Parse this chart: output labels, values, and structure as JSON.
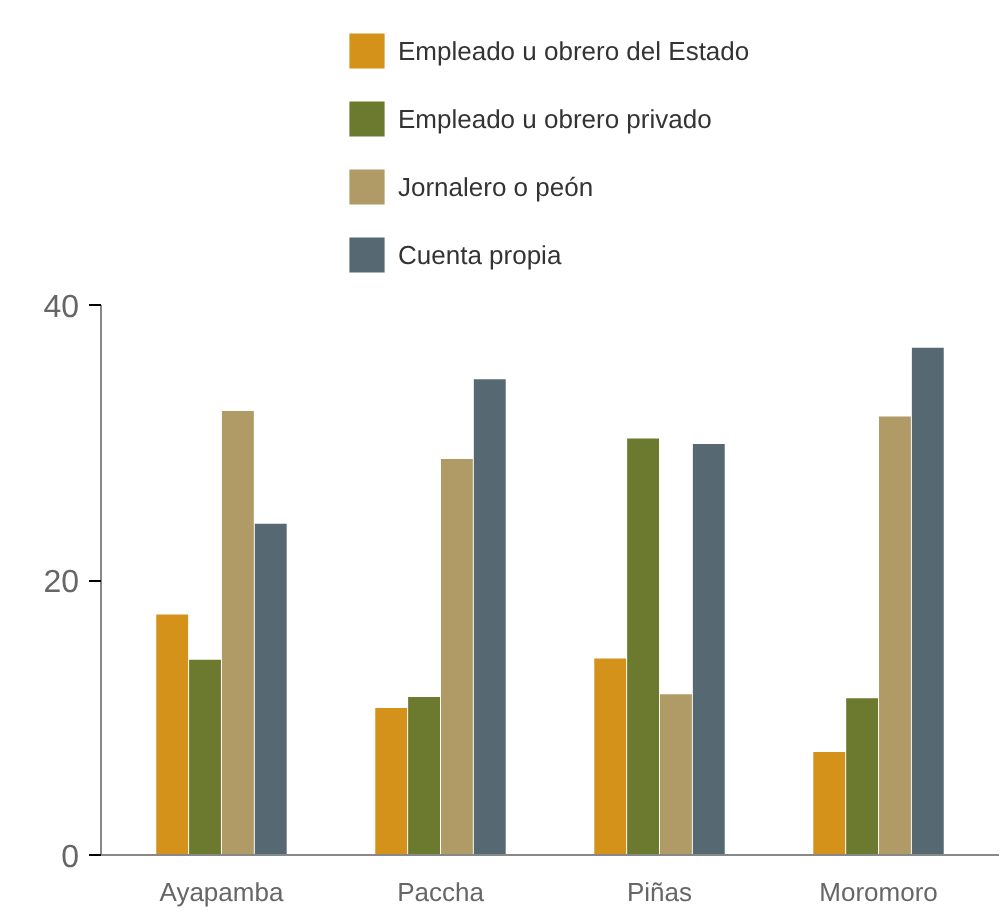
{
  "chart_data": {
    "type": "bar",
    "categories": [
      "Ayapamba",
      "Paccha",
      "Piñas",
      "Moromoro"
    ],
    "series": [
      {
        "name": "Empleado u obrero del Estado",
        "color": "#d4921a",
        "values": [
          17.5,
          10.7,
          14.3,
          7.5
        ]
      },
      {
        "name": "Empleado u obrero privado",
        "color": "#6b7a2e",
        "values": [
          14.2,
          11.5,
          30.3,
          11.4
        ]
      },
      {
        "name": "Jornalero o peón",
        "color": "#b09a65",
        "values": [
          32.3,
          28.8,
          11.7,
          31.9
        ]
      },
      {
        "name": "Cuenta propia",
        "color": "#566872",
        "values": [
          24.1,
          34.6,
          29.9,
          36.9
        ]
      }
    ],
    "ylim": [
      0,
      40
    ],
    "yticks": [
      0,
      20,
      40
    ],
    "grid": false,
    "legend": "top"
  }
}
